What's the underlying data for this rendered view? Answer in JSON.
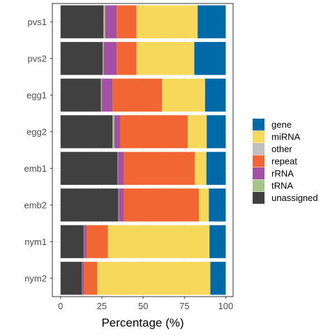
{
  "chart_data": {
    "type": "bar",
    "orientation": "horizontal",
    "stacked": true,
    "categories": [
      "pvs1",
      "pvs2",
      "egg1",
      "egg2",
      "emb1",
      "emb2",
      "nym1",
      "nym2"
    ],
    "xlabel": "Percentage (%)",
    "ylabel": "",
    "xlim": [
      0,
      100
    ],
    "xticks": [
      0,
      25,
      50,
      75,
      100
    ],
    "legend_position": "right",
    "stack_order": [
      "unassigned",
      "tRNA",
      "rRNA",
      "repeat",
      "other",
      "miRNA",
      "gene"
    ],
    "legend_order": [
      "gene",
      "miRNA",
      "other",
      "repeat",
      "rRNA",
      "tRNA",
      "unassigned"
    ],
    "series": [
      {
        "name": "unassigned",
        "color": "#404040",
        "values": [
          26,
          25.5,
          24.5,
          31.5,
          34.5,
          35,
          14,
          13
        ]
      },
      {
        "name": "tRNA",
        "color": "#a6c48a",
        "values": [
          1,
          0.5,
          0.5,
          1,
          0.3,
          0.3,
          0.2,
          0.2
        ]
      },
      {
        "name": "rRNA",
        "color": "#a450a4",
        "values": [
          7,
          8,
          6.5,
          3.5,
          3.5,
          3,
          1.5,
          1
        ]
      },
      {
        "name": "repeat",
        "color": "#f26633",
        "values": [
          12,
          12,
          30,
          41,
          43,
          45.5,
          13,
          8
        ]
      },
      {
        "name": "other",
        "color": "#c0c0c0",
        "values": [
          0,
          0,
          0,
          0,
          0,
          0,
          0,
          0
        ]
      },
      {
        "name": "miRNA",
        "color": "#f8d85a",
        "values": [
          37,
          35,
          26,
          11.5,
          7,
          6,
          61.5,
          68.5
        ]
      },
      {
        "name": "gene",
        "color": "#0069a8",
        "values": [
          17,
          19,
          12.5,
          11.5,
          11.7,
          10.2,
          9.8,
          9.3
        ]
      }
    ]
  }
}
